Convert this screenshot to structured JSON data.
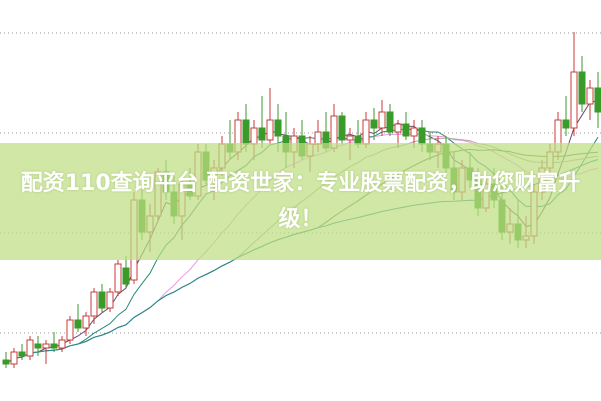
{
  "banner": {
    "text": "配资110查询平台 配资世家：专业股票配资，助您财富升级！"
  },
  "chart_data": {
    "type": "candlestick",
    "title": "",
    "up_color": "#c83a3a",
    "down_color": "#3a9a2a",
    "grid": "horizontal dotted",
    "candles": [
      [
        10,
        12,
        8,
        9
      ],
      [
        9,
        13,
        8,
        12
      ],
      [
        12,
        14,
        10,
        11
      ],
      [
        11,
        16,
        10,
        15
      ],
      [
        14,
        16,
        11,
        13
      ],
      [
        13,
        15,
        9,
        14
      ],
      [
        14,
        17,
        12,
        13
      ],
      [
        13,
        16,
        12,
        15
      ],
      [
        15,
        21,
        14,
        20
      ],
      [
        20,
        24,
        17,
        18
      ],
      [
        18,
        22,
        16,
        21
      ],
      [
        21,
        28,
        19,
        27
      ],
      [
        27,
        29,
        22,
        23
      ],
      [
        23,
        28,
        22,
        27
      ],
      [
        27,
        35,
        26,
        34
      ],
      [
        33,
        36,
        28,
        29
      ],
      [
        30,
        52,
        29,
        50
      ],
      [
        50,
        53,
        40,
        42
      ],
      [
        42,
        49,
        37,
        46
      ],
      [
        46,
        58,
        45,
        57
      ],
      [
        57,
        60,
        50,
        52
      ],
      [
        52,
        56,
        44,
        46
      ],
      [
        46,
        55,
        40,
        54
      ],
      [
        54,
        58,
        50,
        51
      ],
      [
        51,
        64,
        50,
        62
      ],
      [
        62,
        64,
        54,
        55
      ],
      [
        55,
        60,
        50,
        58
      ],
      [
        58,
        66,
        56,
        64
      ],
      [
        64,
        70,
        60,
        62
      ],
      [
        62,
        72,
        60,
        70
      ],
      [
        70,
        74,
        62,
        64
      ],
      [
        64,
        70,
        60,
        68
      ],
      [
        68,
        76,
        63,
        65
      ],
      [
        65,
        78,
        64,
        70
      ],
      [
        70,
        74,
        62,
        66
      ],
      [
        66,
        72,
        58,
        62
      ],
      [
        62,
        68,
        58,
        66
      ],
      [
        66,
        70,
        60,
        61
      ],
      [
        61,
        66,
        57,
        64
      ],
      [
        64,
        70,
        62,
        67
      ],
      [
        67,
        72,
        62,
        63
      ],
      [
        63,
        74,
        62,
        71
      ],
      [
        71,
        72,
        64,
        65
      ],
      [
        65,
        68,
        60,
        66
      ],
      [
        66,
        70,
        63,
        64
      ],
      [
        64,
        72,
        63,
        70
      ],
      [
        70,
        73,
        65,
        68
      ],
      [
        68,
        75,
        66,
        72
      ],
      [
        72,
        74,
        66,
        67
      ],
      [
        67,
        70,
        63,
        69
      ],
      [
        69,
        72,
        65,
        66
      ],
      [
        66,
        70,
        63,
        68
      ],
      [
        68,
        70,
        62,
        64
      ],
      [
        64,
        67,
        60,
        62
      ],
      [
        62,
        66,
        58,
        64
      ],
      [
        64,
        66,
        56,
        58
      ],
      [
        58,
        62,
        50,
        52
      ],
      [
        52,
        60,
        50,
        58
      ],
      [
        58,
        62,
        53,
        55
      ],
      [
        55,
        58,
        46,
        48
      ],
      [
        48,
        56,
        47,
        54
      ],
      [
        54,
        58,
        48,
        50
      ],
      [
        50,
        54,
        40,
        42
      ],
      [
        42,
        48,
        39,
        44
      ],
      [
        44,
        50,
        38,
        40
      ],
      [
        40,
        46,
        38,
        41
      ],
      [
        41,
        54,
        39,
        52
      ],
      [
        52,
        60,
        50,
        58
      ],
      [
        58,
        64,
        55,
        62
      ],
      [
        62,
        72,
        60,
        70
      ],
      [
        70,
        76,
        66,
        68
      ],
      [
        68,
        92,
        66,
        82
      ],
      [
        82,
        86,
        72,
        74
      ],
      [
        74,
        80,
        70,
        78
      ],
      [
        78,
        82,
        68,
        72
      ]
    ],
    "moving_averages": [
      {
        "period": 5,
        "color": "#6a4a6a"
      },
      {
        "period": 10,
        "color": "#2a8a7a"
      },
      {
        "period": 20,
        "color": "#e79be0"
      },
      {
        "period": 30,
        "color": "#b0a898"
      },
      {
        "period": 40,
        "color": "#4a8a3a"
      },
      {
        "period": 60,
        "color": "#2a8a9a"
      }
    ],
    "ylim": [
      0,
      100
    ]
  }
}
